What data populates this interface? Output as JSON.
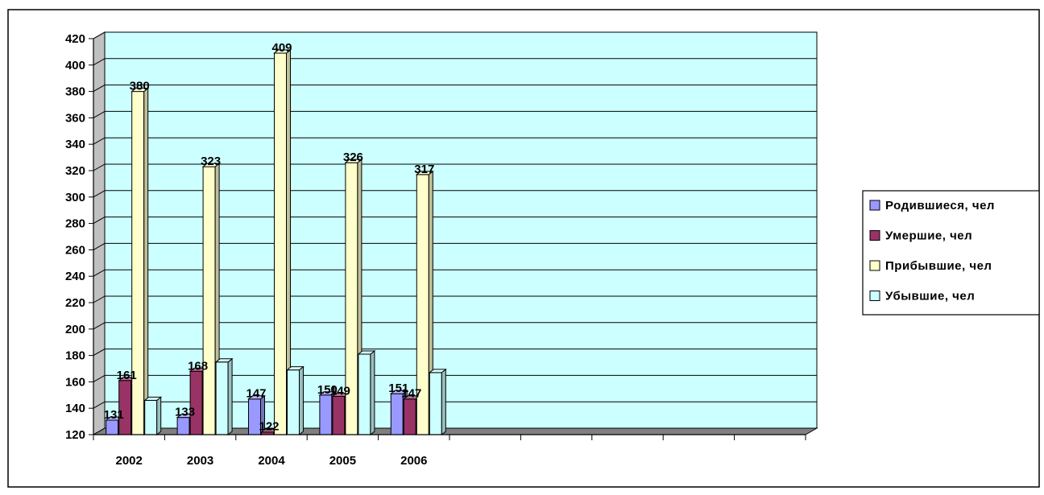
{
  "chart_data": {
    "type": "bar",
    "categories": [
      "2002",
      "2003",
      "2004",
      "2005",
      "2006"
    ],
    "series": [
      {
        "name": "Родившиеся, чел",
        "values": [
          131,
          133,
          147,
          150,
          151
        ],
        "color": "#9999ff"
      },
      {
        "name": "Умершие, чел",
        "values": [
          161,
          168,
          122,
          149,
          147
        ],
        "color": "#993366"
      },
      {
        "name": "Прибывшие, чел",
        "values": [
          380,
          323,
          409,
          326,
          317
        ],
        "color": "#ffffcc"
      },
      {
        "name": "Убывшие, чел",
        "values": [
          146,
          175,
          169,
          181,
          167
        ],
        "color": "#ccffff"
      }
    ],
    "data_labels": [
      [
        "131",
        "133",
        "147",
        "150",
        "151"
      ],
      [
        "161",
        "168",
        "122",
        "149",
        "147"
      ],
      [
        "380",
        "323",
        "409",
        "326",
        "317"
      ],
      [
        "",
        "",
        "",
        "",
        ""
      ]
    ],
    "ylim": [
      120,
      420
    ],
    "yticks": [
      "120",
      "140",
      "160",
      "180",
      "200",
      "220",
      "240",
      "260",
      "280",
      "300",
      "320",
      "340",
      "360",
      "380",
      "400",
      "420"
    ],
    "total_category_slots": 10,
    "grid": true,
    "legend_position": "right",
    "plot_background": "#ccffff",
    "floor_color": "#808080",
    "title": "",
    "xlabel": "",
    "ylabel": ""
  }
}
